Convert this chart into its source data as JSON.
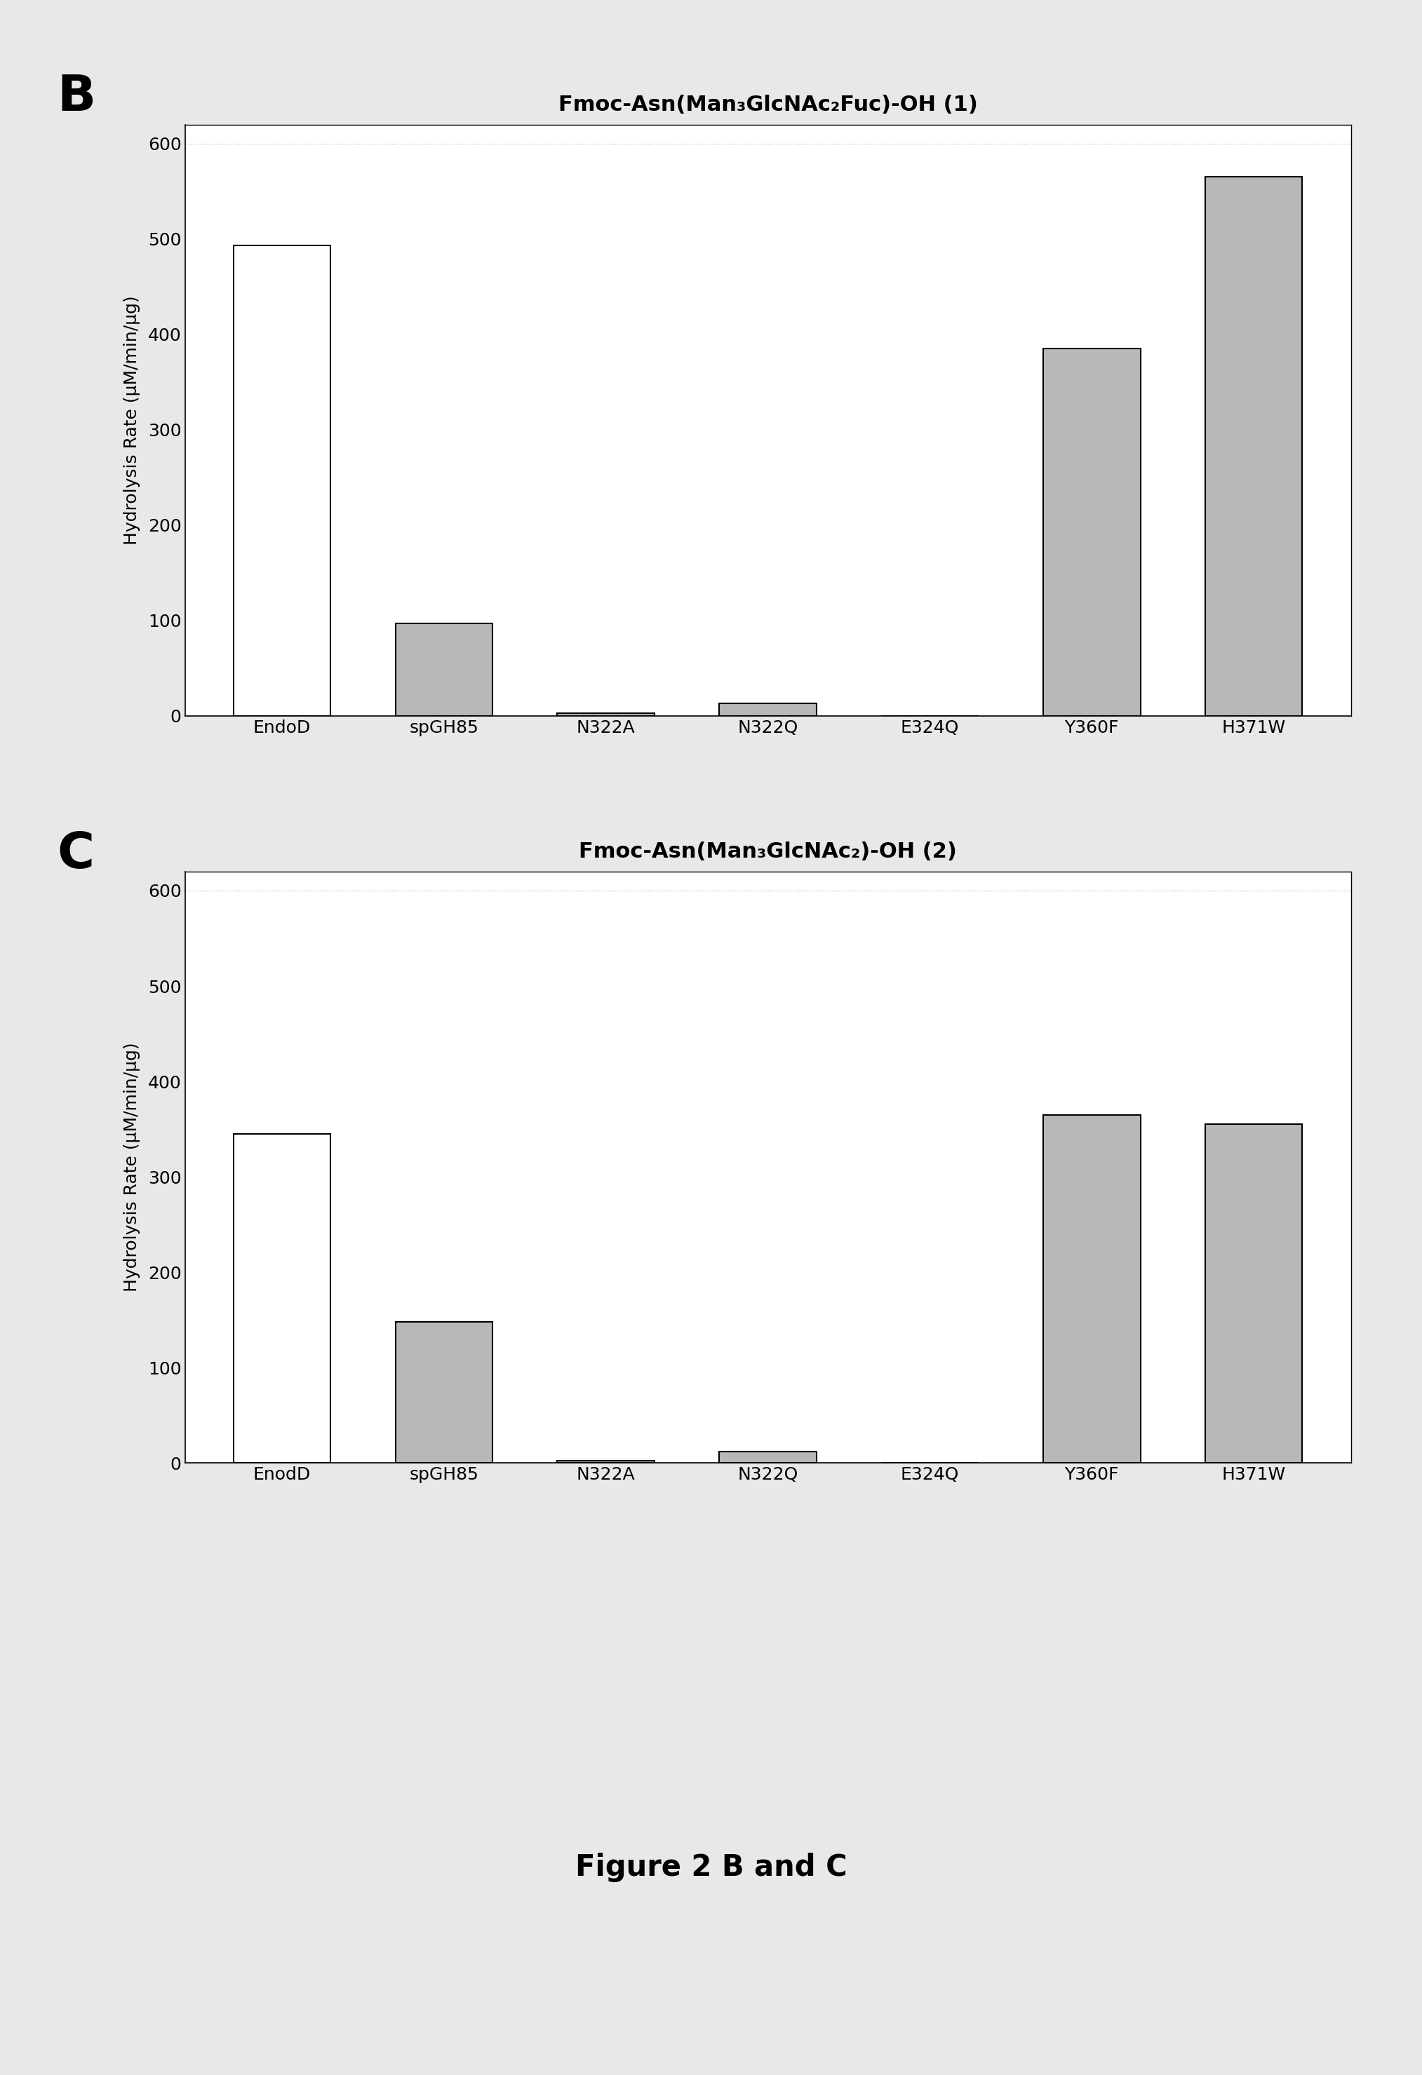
{
  "panel_B": {
    "title": "Fmoc-Asn(Man₃GlcNAc₂Fuc)-OH (1)",
    "categories": [
      "EndoD",
      "spGH85",
      "N322A",
      "N322Q",
      "E324Q",
      "Y360F",
      "H371W"
    ],
    "values": [
      493,
      97,
      3,
      13,
      0,
      385,
      565
    ],
    "bar_colors": [
      "#ffffff",
      "#b8b8b8",
      "#b8b8b8",
      "#b8b8b8",
      "#b8b8b8",
      "#b8b8b8",
      "#b8b8b8"
    ],
    "bar_edgecolors": [
      "#000000",
      "#000000",
      "#000000",
      "#000000",
      "#000000",
      "#000000",
      "#000000"
    ],
    "ylabel": "Hydrolysis Rate (μM/min/μg)",
    "ylim": [
      0,
      620
    ],
    "yticks": [
      0,
      100,
      200,
      300,
      400,
      500,
      600
    ],
    "panel_label": "B"
  },
  "panel_C": {
    "title": "Fmoc-Asn(Man₃GlcNAc₂)-OH (2)",
    "categories": [
      "EnodD",
      "spGH85",
      "N322A",
      "N322Q",
      "E324Q",
      "Y360F",
      "H371W"
    ],
    "values": [
      345,
      148,
      2,
      12,
      0,
      365,
      355
    ],
    "bar_colors": [
      "#ffffff",
      "#b8b8b8",
      "#b8b8b8",
      "#b8b8b8",
      "#b8b8b8",
      "#b8b8b8",
      "#b8b8b8"
    ],
    "bar_edgecolors": [
      "#000000",
      "#000000",
      "#000000",
      "#000000",
      "#000000",
      "#000000",
      "#000000"
    ],
    "ylabel": "Hydrolysis Rate (μM/min/μg)",
    "ylim": [
      0,
      620
    ],
    "yticks": [
      0,
      100,
      200,
      300,
      400,
      500,
      600
    ],
    "panel_label": "C"
  },
  "figure_caption": "Figure 2 B and C",
  "plot_bg": "#ffffff",
  "figure_bg": "#e8e8e8"
}
